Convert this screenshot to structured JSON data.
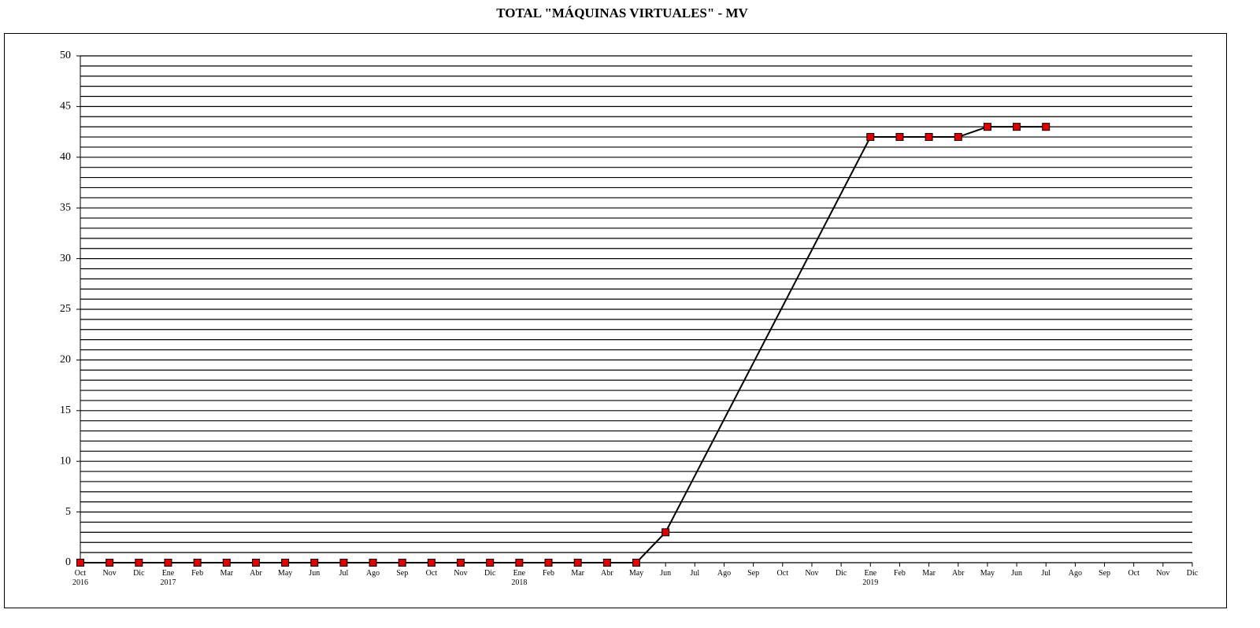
{
  "chart_data": {
    "type": "line",
    "title": "TOTAL \"MÁQUINAS VIRTUALES\" - MV",
    "categories": [
      "Oct\n2016",
      "Nov",
      "Dic",
      "Ene\n2017",
      "Feb",
      "Mar",
      "Abr",
      "May",
      "Jun",
      "Jul",
      "Ago",
      "Sep",
      "Oct",
      "Nov",
      "Dic",
      "Ene\n2018",
      "Feb",
      "Mar",
      "Abr",
      "May",
      "Jun",
      "Jul",
      "Ago",
      "Sep",
      "Oct",
      "Nov",
      "Dic",
      "Ene\n2019",
      "Feb",
      "Mar",
      "Abr",
      "May",
      "Jun",
      "Jul",
      "Ago",
      "Sep",
      "Oct",
      "Nov",
      "Dic"
    ],
    "series": [
      {
        "color": "#000000",
        "marker_color": "#e00000",
        "values": [
          0,
          0,
          0,
          0,
          0,
          0,
          0,
          0,
          0,
          0,
          0,
          0,
          0,
          0,
          0,
          0,
          0,
          0,
          0,
          0,
          3,
          null,
          null,
          null,
          null,
          null,
          null,
          42,
          42,
          42,
          42,
          43,
          43,
          43,
          null,
          null,
          null,
          null,
          null
        ]
      }
    ],
    "span_gaps": true,
    "ylim": [
      0,
      50
    ],
    "yticks": [
      0,
      5,
      10,
      15,
      20,
      25,
      30,
      35,
      40,
      45,
      50
    ],
    "ygrid": [
      0,
      1,
      2,
      3,
      4,
      5,
      6,
      7,
      8,
      9,
      10,
      11,
      12,
      13,
      14,
      15,
      16,
      17,
      18,
      19,
      20,
      21,
      22,
      23,
      24,
      25,
      26,
      27,
      28,
      29,
      30,
      31,
      32,
      33,
      34,
      35,
      36,
      37,
      38,
      39,
      40,
      41,
      42,
      43,
      44,
      45,
      46,
      47,
      48,
      49,
      50
    ],
    "grid": true
  }
}
